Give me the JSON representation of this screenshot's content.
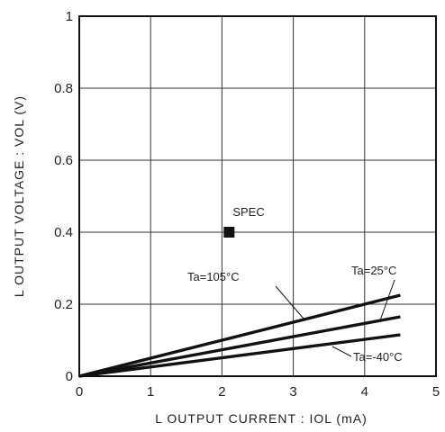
{
  "chart_data": {
    "type": "line",
    "xlabel": "L  OUTPUT  CURRENT : IOL (mA)",
    "ylabel": "L  OUTPUT  VOLTAGE : VOL (V)",
    "xlim": [
      0,
      5
    ],
    "ylim": [
      0,
      1
    ],
    "x_ticks": [
      "0",
      "1",
      "2",
      "3",
      "4",
      "5"
    ],
    "y_ticks": [
      "0",
      "0.2",
      "0.4",
      "0.6",
      "0.8",
      "1"
    ],
    "grid": true,
    "series": [
      {
        "name": "Ta=105°C",
        "x": [
          0,
          4.5
        ],
        "y": [
          0,
          0.225
        ]
      },
      {
        "name": "Ta=25°C",
        "x": [
          0,
          4.5
        ],
        "y": [
          0,
          0.165
        ]
      },
      {
        "name": "Ta=-40°C",
        "x": [
          0,
          4.5
        ],
        "y": [
          0,
          0.115
        ]
      }
    ],
    "points": [
      {
        "name": "SPEC",
        "x": 2.1,
        "y": 0.4
      }
    ]
  }
}
